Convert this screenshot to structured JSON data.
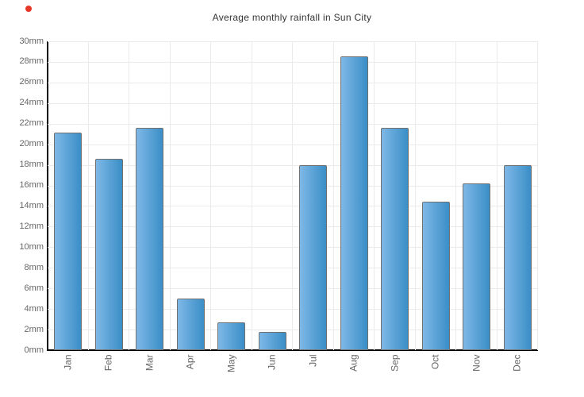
{
  "indicator": {
    "name": "red-dot",
    "color": "#e53828"
  },
  "chart_data": {
    "type": "bar",
    "title": "Average monthly rainfall in Sun City",
    "unit": "mm",
    "categories": [
      "Jan",
      "Feb",
      "Mar",
      "Apr",
      "May",
      "Jun",
      "Jul",
      "Aug",
      "Sep",
      "Oct",
      "Nov",
      "Dec"
    ],
    "values": [
      21.1,
      18.6,
      21.6,
      5.0,
      2.7,
      1.8,
      18.0,
      28.5,
      21.6,
      14.4,
      16.2,
      18.0
    ],
    "xlabel": "",
    "ylabel": "",
    "ylim": [
      0,
      30
    ],
    "ytick_step": 2,
    "ytick_labels": [
      "0mm",
      "2mm",
      "4mm",
      "6mm",
      "8mm",
      "10mm",
      "12mm",
      "14mm",
      "16mm",
      "18mm",
      "20mm",
      "22mm",
      "24mm",
      "26mm",
      "28mm",
      "30mm"
    ],
    "grid": true,
    "legend": "none",
    "colors": {
      "bar_gradient_left": "#7eb8e7",
      "bar_gradient_right": "#3a8ec6",
      "bar_border": "#707070",
      "grid_line": "#ebebeb",
      "axis_line": "#000000",
      "tick_text": "#666666",
      "title_text": "#333333",
      "background": "#ffffff"
    }
  }
}
